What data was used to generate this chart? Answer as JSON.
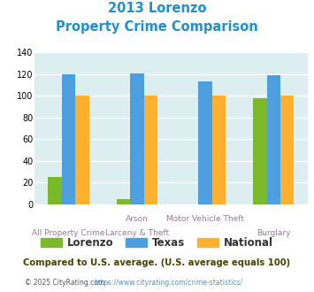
{
  "title_line1": "2013 Lorenzo",
  "title_line2": "Property Crime Comparison",
  "cat_labels_top": [
    "",
    "Arson",
    "Motor Vehicle Theft",
    ""
  ],
  "cat_labels_bot": [
    "All Property Crime",
    "Larceny & Theft",
    "",
    "Burglary"
  ],
  "series": {
    "Lorenzo": [
      25,
      5,
      0,
      98
    ],
    "Texas": [
      120,
      121,
      113,
      119
    ],
    "National": [
      100,
      100,
      100,
      100
    ]
  },
  "colors": {
    "Lorenzo": "#7aba2a",
    "Texas": "#4d9fdf",
    "National": "#ffb02e"
  },
  "ylim": [
    0,
    140
  ],
  "yticks": [
    0,
    20,
    40,
    60,
    80,
    100,
    120,
    140
  ],
  "background_color": "#ddeef0",
  "title_color": "#2090d0",
  "subtitle_note": "Compared to U.S. average. (U.S. average equals 100)",
  "subtitle_note_color": "#444400",
  "footer_left": "© 2025 CityRating.com - ",
  "footer_right": "https://www.cityrating.com/crime-statistics/",
  "footer_color": "#555555",
  "footer_link_color": "#4499cc",
  "xlabel_color": "#997799"
}
